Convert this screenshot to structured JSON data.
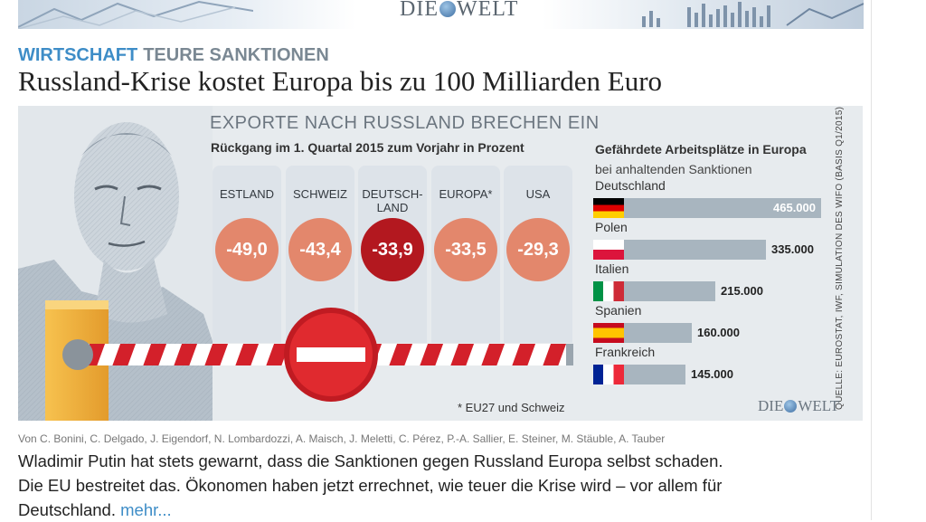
{
  "masthead": {
    "logo_left": "DIE",
    "logo_right": "WELT"
  },
  "article": {
    "kicker_section": "WIRTSCHAFT",
    "kicker_topic": "TEURE SANKTIONEN",
    "headline": "Russland-Krise kostet Europa bis zu 100 Milliarden Euro",
    "authors": "Von C. Bonini, C. Delgado, J. Eigendorf, N. Lombardozzi, A. Maisch, J. Meletti, C. Pérez, P.-A. Sallier, E. Steiner, M. Stäuble, A. Tauber",
    "teaser": "Wladimir Putin hat stets gewarnt, dass die Sanktionen gegen Russland Europa selbst schaden. Die EU bestreitet das. Ökonomen haben jetzt errechnet, wie teuer die Krise wird – vor allem für Deutschland.",
    "more_link": "mehr..."
  },
  "chart_data": [
    {
      "type": "table",
      "title": "EXPORTE NACH RUSSLAND BRECHEN EIN",
      "subtitle": "Rückgang im 1. Quartal 2015 zum Vorjahr in Prozent",
      "categories": [
        "ESTLAND",
        "SCHWEIZ",
        "DEUTSCH-\nLAND",
        "EUROPA*",
        "USA"
      ],
      "values": [
        -49.0,
        -43.4,
        -33.9,
        -33.5,
        -29.3
      ],
      "labels": [
        "-49,0",
        "-43,4",
        "-33,9",
        "-33,5",
        "-29,3"
      ],
      "colors": [
        "#e3876c",
        "#e3876c",
        "#b3181f",
        "#e3876c",
        "#e3876c"
      ],
      "footnote": "* EU27 und Schweiz"
    },
    {
      "type": "bar",
      "title": "Gefährdete Arbeitsplätze in Europa",
      "subtitle": "bei anhaltenden Sanktionen",
      "categories": [
        "Deutschland",
        "Polen",
        "Italien",
        "Spanien",
        "Frankreich"
      ],
      "flags": [
        "de",
        "pl",
        "it",
        "es",
        "fr"
      ],
      "values": [
        465000,
        335000,
        215000,
        160000,
        145000
      ],
      "labels": [
        "465.000",
        "335.000",
        "215.000",
        "160.000",
        "145.000"
      ],
      "bar_color": "#a8b5bf",
      "source": "QUELLE: EUROSTAT, IWF, SIMULATION DES WIFO (BASIS Q1/2015)",
      "logo": "DIE WELT"
    }
  ]
}
